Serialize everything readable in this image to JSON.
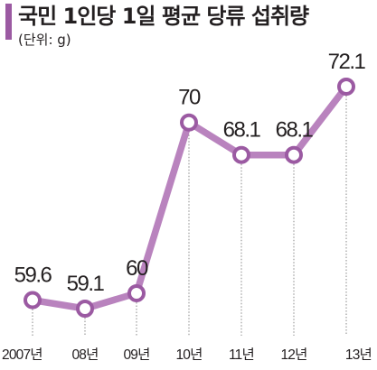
{
  "chart_data": {
    "type": "line",
    "title": "국민 1인당 1일 평균 당류 섭취량",
    "unit_label": "(단위: g)",
    "categories": [
      "2007년",
      "08년",
      "09년",
      "10년",
      "11년",
      "12년",
      "13년"
    ],
    "values": [
      59.6,
      59.1,
      60,
      70,
      68.1,
      68.1,
      72.1
    ],
    "value_labels": [
      "59.6",
      "59.1",
      "60",
      "70",
      "68.1",
      "68.1",
      "72.1"
    ],
    "ylim": [
      55,
      75
    ],
    "grid": false,
    "legend": "none",
    "colors": {
      "line": "#b983be",
      "marker_fill": "#ffffff",
      "marker_stroke": "#9b5aa2",
      "title_bar": "#9b5aa2",
      "guide": "#888888"
    }
  }
}
